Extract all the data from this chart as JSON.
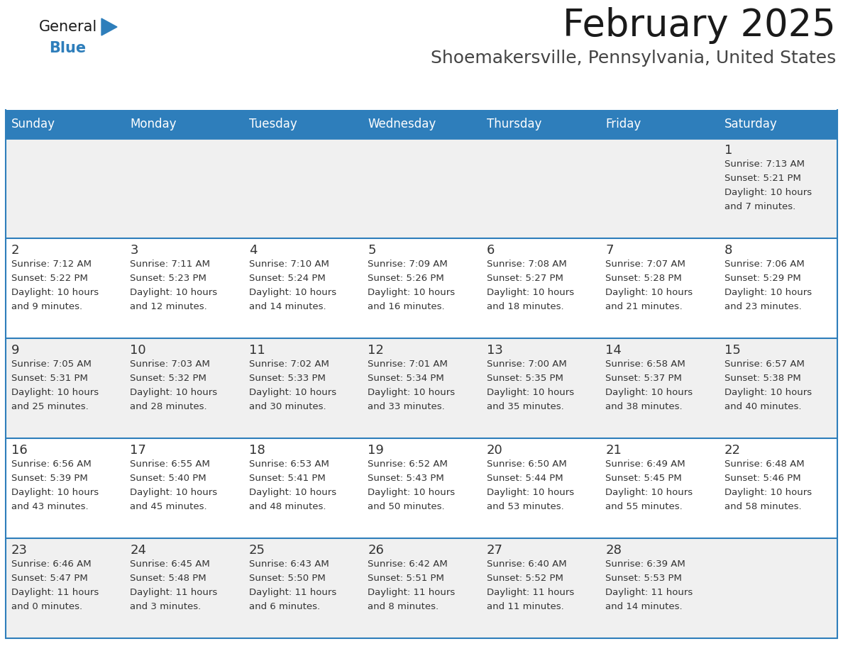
{
  "title": "February 2025",
  "subtitle": "Shoemakersville, Pennsylvania, United States",
  "header_bg": "#2E7EBB",
  "header_text": "#FFFFFF",
  "day_names": [
    "Sunday",
    "Monday",
    "Tuesday",
    "Wednesday",
    "Thursday",
    "Friday",
    "Saturday"
  ],
  "row_bg_light": "#F0F0F0",
  "row_bg_white": "#FFFFFF",
  "cell_border": "#2E7EBB",
  "day_num_color": "#333333",
  "info_text_color": "#333333",
  "title_color": "#1a1a1a",
  "subtitle_color": "#444444",
  "logo_general_color": "#1a1a1a",
  "logo_blue_color": "#2E7EBB",
  "calendar": [
    [
      {
        "day": null,
        "sunrise": null,
        "sunset": null,
        "daylight": null
      },
      {
        "day": null,
        "sunrise": null,
        "sunset": null,
        "daylight": null
      },
      {
        "day": null,
        "sunrise": null,
        "sunset": null,
        "daylight": null
      },
      {
        "day": null,
        "sunrise": null,
        "sunset": null,
        "daylight": null
      },
      {
        "day": null,
        "sunrise": null,
        "sunset": null,
        "daylight": null
      },
      {
        "day": null,
        "sunrise": null,
        "sunset": null,
        "daylight": null
      },
      {
        "day": "1",
        "sunrise": "7:13 AM",
        "sunset": "5:21 PM",
        "daylight": "10 hours and 7 minutes."
      }
    ],
    [
      {
        "day": "2",
        "sunrise": "7:12 AM",
        "sunset": "5:22 PM",
        "daylight": "10 hours and 9 minutes."
      },
      {
        "day": "3",
        "sunrise": "7:11 AM",
        "sunset": "5:23 PM",
        "daylight": "10 hours and 12 minutes."
      },
      {
        "day": "4",
        "sunrise": "7:10 AM",
        "sunset": "5:24 PM",
        "daylight": "10 hours and 14 minutes."
      },
      {
        "day": "5",
        "sunrise": "7:09 AM",
        "sunset": "5:26 PM",
        "daylight": "10 hours and 16 minutes."
      },
      {
        "day": "6",
        "sunrise": "7:08 AM",
        "sunset": "5:27 PM",
        "daylight": "10 hours and 18 minutes."
      },
      {
        "day": "7",
        "sunrise": "7:07 AM",
        "sunset": "5:28 PM",
        "daylight": "10 hours and 21 minutes."
      },
      {
        "day": "8",
        "sunrise": "7:06 AM",
        "sunset": "5:29 PM",
        "daylight": "10 hours and 23 minutes."
      }
    ],
    [
      {
        "day": "9",
        "sunrise": "7:05 AM",
        "sunset": "5:31 PM",
        "daylight": "10 hours and 25 minutes."
      },
      {
        "day": "10",
        "sunrise": "7:03 AM",
        "sunset": "5:32 PM",
        "daylight": "10 hours and 28 minutes."
      },
      {
        "day": "11",
        "sunrise": "7:02 AM",
        "sunset": "5:33 PM",
        "daylight": "10 hours and 30 minutes."
      },
      {
        "day": "12",
        "sunrise": "7:01 AM",
        "sunset": "5:34 PM",
        "daylight": "10 hours and 33 minutes."
      },
      {
        "day": "13",
        "sunrise": "7:00 AM",
        "sunset": "5:35 PM",
        "daylight": "10 hours and 35 minutes."
      },
      {
        "day": "14",
        "sunrise": "6:58 AM",
        "sunset": "5:37 PM",
        "daylight": "10 hours and 38 minutes."
      },
      {
        "day": "15",
        "sunrise": "6:57 AM",
        "sunset": "5:38 PM",
        "daylight": "10 hours and 40 minutes."
      }
    ],
    [
      {
        "day": "16",
        "sunrise": "6:56 AM",
        "sunset": "5:39 PM",
        "daylight": "10 hours and 43 minutes."
      },
      {
        "day": "17",
        "sunrise": "6:55 AM",
        "sunset": "5:40 PM",
        "daylight": "10 hours and 45 minutes."
      },
      {
        "day": "18",
        "sunrise": "6:53 AM",
        "sunset": "5:41 PM",
        "daylight": "10 hours and 48 minutes."
      },
      {
        "day": "19",
        "sunrise": "6:52 AM",
        "sunset": "5:43 PM",
        "daylight": "10 hours and 50 minutes."
      },
      {
        "day": "20",
        "sunrise": "6:50 AM",
        "sunset": "5:44 PM",
        "daylight": "10 hours and 53 minutes."
      },
      {
        "day": "21",
        "sunrise": "6:49 AM",
        "sunset": "5:45 PM",
        "daylight": "10 hours and 55 minutes."
      },
      {
        "day": "22",
        "sunrise": "6:48 AM",
        "sunset": "5:46 PM",
        "daylight": "10 hours and 58 minutes."
      }
    ],
    [
      {
        "day": "23",
        "sunrise": "6:46 AM",
        "sunset": "5:47 PM",
        "daylight": "11 hours and 0 minutes."
      },
      {
        "day": "24",
        "sunrise": "6:45 AM",
        "sunset": "5:48 PM",
        "daylight": "11 hours and 3 minutes."
      },
      {
        "day": "25",
        "sunrise": "6:43 AM",
        "sunset": "5:50 PM",
        "daylight": "11 hours and 6 minutes."
      },
      {
        "day": "26",
        "sunrise": "6:42 AM",
        "sunset": "5:51 PM",
        "daylight": "11 hours and 8 minutes."
      },
      {
        "day": "27",
        "sunrise": "6:40 AM",
        "sunset": "5:52 PM",
        "daylight": "11 hours and 11 minutes."
      },
      {
        "day": "28",
        "sunrise": "6:39 AM",
        "sunset": "5:53 PM",
        "daylight": "11 hours and 14 minutes."
      },
      {
        "day": null,
        "sunrise": null,
        "sunset": null,
        "daylight": null
      }
    ]
  ]
}
